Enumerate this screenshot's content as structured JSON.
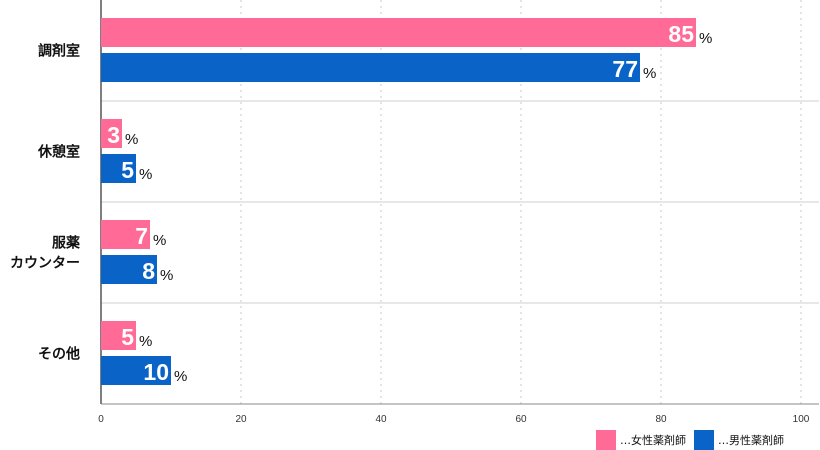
{
  "chart_data": {
    "type": "bar",
    "orientation": "horizontal",
    "categories": [
      "調剤室",
      "休憩室",
      "服薬\nカウンター",
      "その他"
    ],
    "series": [
      {
        "name": "女性薬剤師",
        "values": [
          85,
          3,
          7,
          5
        ],
        "color": "#ff6b96"
      },
      {
        "name": "男性薬剤師",
        "values": [
          77,
          5,
          8,
          10
        ],
        "color": "#0a64c8"
      }
    ],
    "value_suffix": "%",
    "xlim": [
      0,
      100
    ],
    "x_ticks": [
      0,
      20,
      40,
      60,
      80,
      100
    ],
    "grid": true,
    "legend_position": "bottom-right",
    "legend_prefix": "…"
  }
}
